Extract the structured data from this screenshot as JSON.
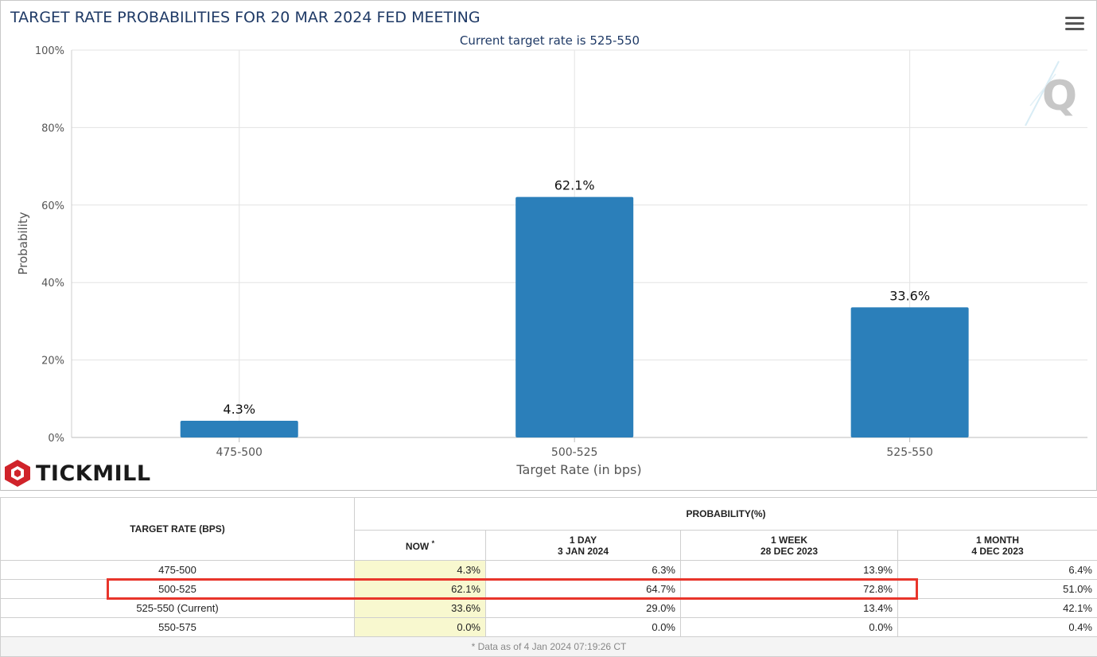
{
  "chart": {
    "title": "TARGET RATE PROBABILITIES FOR 20 MAR 2024 FED MEETING",
    "subtitle": "Current target rate is 525-550"
  },
  "chart_data": {
    "type": "bar",
    "categories": [
      "475-500",
      "500-525",
      "525-550"
    ],
    "values": [
      4.3,
      62.1,
      33.6
    ],
    "data_labels": [
      "4.3%",
      "62.1%",
      "33.6%"
    ],
    "title": "TARGET RATE PROBABILITIES FOR 20 MAR 2024 FED MEETING",
    "subtitle": "Current target rate is 525-550",
    "xlabel": "Target Rate (in bps)",
    "ylabel": "Probability",
    "ylim": [
      0,
      100
    ],
    "yticks": [
      "0%",
      "20%",
      "40%",
      "60%",
      "80%",
      "100%"
    ],
    "ytick_values": [
      0,
      20,
      40,
      60,
      80,
      100
    ],
    "grid": true,
    "bar_color": "#2b7fba"
  },
  "brand": {
    "name": "TICKMILL",
    "logo_color": "#d0232a"
  },
  "table": {
    "header_target": "TARGET RATE (BPS)",
    "header_probability": "PROBABILITY(%)",
    "col_now": "NOW",
    "col_now_mark": "*",
    "col_1day_line1": "1 DAY",
    "col_1day_line2": "3 JAN 2024",
    "col_1week_line1": "1 WEEK",
    "col_1week_line2": "28 DEC 2023",
    "col_1month_line1": "1 MONTH",
    "col_1month_line2": "4 DEC 2023",
    "rows": [
      {
        "rate": "475-500",
        "now": "4.3%",
        "day": "6.3%",
        "week": "13.9%",
        "month": "6.4%"
      },
      {
        "rate": "500-525",
        "now": "62.1%",
        "day": "64.7%",
        "week": "72.8%",
        "month": "51.0%"
      },
      {
        "rate": "525-550 (Current)",
        "now": "33.6%",
        "day": "29.0%",
        "week": "13.4%",
        "month": "42.1%"
      },
      {
        "rate": "550-575",
        "now": "0.0%",
        "day": "0.0%",
        "week": "0.0%",
        "month": "0.4%"
      }
    ],
    "footnote": "* Data as of 4 Jan 2024 07:19:26 CT"
  },
  "highlight_color": "#e8352b"
}
